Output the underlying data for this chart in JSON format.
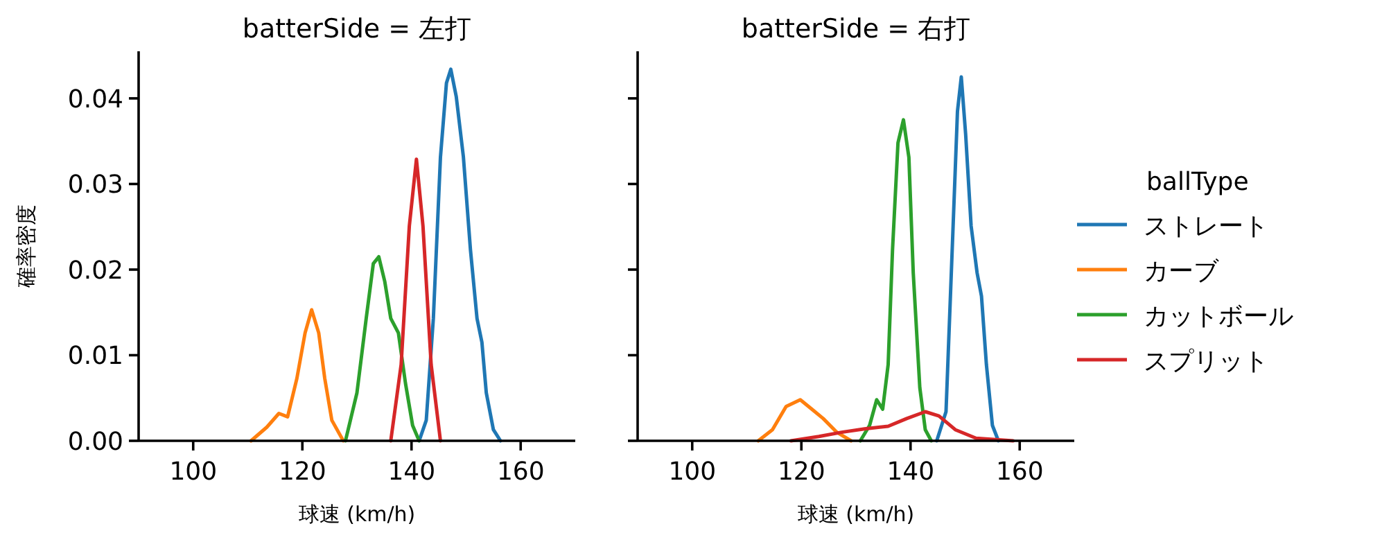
{
  "chart_data": [
    {
      "type": "line",
      "title": "batterSide = 左打",
      "xlabel": "球速 (km/h)",
      "ylabel": "確率密度",
      "xlim": [
        90,
        170
      ],
      "ylim": [
        0,
        0.0455
      ],
      "xticks": [
        100,
        120,
        140,
        160
      ],
      "yticks": [
        {
          "value": 0,
          "label": "0.00"
        },
        {
          "value": 0.01,
          "label": "0.01"
        },
        {
          "value": 0.02,
          "label": "0.02"
        },
        {
          "value": 0.03,
          "label": "0.03"
        },
        {
          "value": 0.04,
          "label": "0.04"
        }
      ],
      "series": [
        {
          "color": "#1f77b4",
          "x": [
            141.4,
            142.7,
            144.0,
            145.3,
            146.4,
            147.2,
            148.2,
            149.5,
            150.8,
            152.0,
            152.9,
            153.7,
            155.0,
            156.3
          ],
          "values": [
            0,
            0.0024,
            0.0143,
            0.0331,
            0.0418,
            0.0434,
            0.0402,
            0.0332,
            0.0223,
            0.0143,
            0.0115,
            0.0056,
            0.0013,
            0
          ]
        },
        {
          "color": "#ff7f0e",
          "x": [
            110.6,
            113.5,
            115.7,
            117.3,
            119.0,
            120.5,
            121.7,
            123.0,
            124.1,
            125.4,
            127.5
          ],
          "values": [
            0,
            0.0016,
            0.0032,
            0.0028,
            0.0073,
            0.0126,
            0.0153,
            0.0126,
            0.0073,
            0.0024,
            0
          ]
        },
        {
          "color": "#2ca02c",
          "x": [
            127.9,
            130.0,
            131.7,
            133.0,
            134.0,
            135.1,
            136.2,
            137.6,
            138.9,
            140.2,
            141.4
          ],
          "values": [
            0,
            0.0056,
            0.0143,
            0.0207,
            0.0215,
            0.0186,
            0.0143,
            0.0126,
            0.0067,
            0.0018,
            0
          ]
        },
        {
          "color": "#d62728",
          "x": [
            136.2,
            138.1,
            139.6,
            140.9,
            142.1,
            143.6,
            145.3
          ],
          "values": [
            0,
            0.0089,
            0.0251,
            0.0329,
            0.0251,
            0.0089,
            0
          ]
        }
      ]
    },
    {
      "type": "line",
      "title": "batterSide = 右打",
      "xlabel": "球速 (km/h)",
      "xlim": [
        90,
        170
      ],
      "ylim": [
        0,
        0.0455
      ],
      "xticks": [
        100,
        120,
        140,
        160
      ],
      "yticks": [
        0,
        0.01,
        0.02,
        0.03,
        0.04
      ],
      "tick_labels": "x",
      "legend": "right",
      "legend_title": "ballType",
      "series": [
        {
          "name": "ストレート",
          "color": "#1f77b4",
          "x": [
            144.8,
            146.5,
            147.8,
            148.6,
            149.3,
            150.1,
            151.1,
            152.2,
            153.0,
            153.9,
            155.0,
            156.1
          ],
          "values": [
            0,
            0.0034,
            0.0251,
            0.0385,
            0.0425,
            0.0358,
            0.0251,
            0.0196,
            0.0169,
            0.0089,
            0.0018,
            0
          ]
        },
        {
          "name": "カーブ",
          "color": "#ff7f0e",
          "x": [
            112.1,
            114.7,
            117.2,
            119.8,
            121.9,
            124.0,
            126.5,
            129.1
          ],
          "values": [
            0,
            0.0013,
            0.004,
            0.0048,
            0.0037,
            0.0026,
            0.001,
            0
          ]
        },
        {
          "name": "カットボール",
          "color": "#2ca02c",
          "x": [
            130.8,
            132.5,
            133.8,
            134.9,
            135.9,
            136.7,
            137.7,
            138.7,
            139.7,
            140.5,
            141.7,
            142.7,
            143.8
          ],
          "values": [
            0,
            0.0018,
            0.0048,
            0.0037,
            0.0089,
            0.0223,
            0.0348,
            0.0375,
            0.0331,
            0.0196,
            0.0062,
            0.0013,
            0
          ]
        },
        {
          "name": "スプリット",
          "color": "#d62728",
          "x": [
            118.1,
            123.2,
            127.4,
            131.6,
            135.9,
            139.3,
            142.7,
            145.2,
            148.2,
            152.0,
            158.8
          ],
          "values": [
            0,
            0.0005,
            0.001,
            0.0014,
            0.0017,
            0.0026,
            0.0034,
            0.0029,
            0.0013,
            0.0003,
            0
          ]
        }
      ]
    }
  ]
}
